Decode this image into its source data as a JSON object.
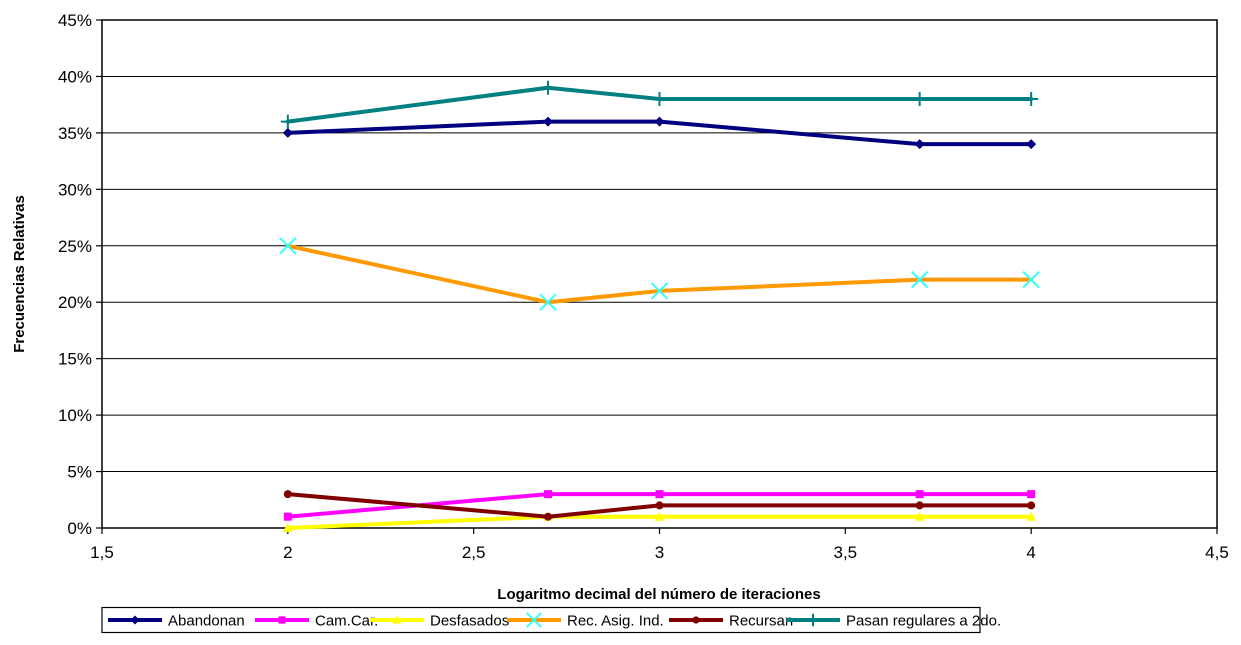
{
  "chart_data": {
    "type": "line",
    "title": "",
    "xlabel": "Logaritmo decimal del número de iteraciones",
    "ylabel": "Frecuencias Relativas",
    "xlim": [
      1.5,
      4.5
    ],
    "ylim": [
      0,
      0.45
    ],
    "x_ticks": [
      1.5,
      2,
      2.5,
      3,
      3.5,
      4,
      4.5
    ],
    "x_tick_labels": [
      "1,5",
      "2",
      "2,5",
      "3",
      "3,5",
      "4",
      "4,5"
    ],
    "y_ticks": [
      0,
      0.05,
      0.1,
      0.15,
      0.2,
      0.25,
      0.3,
      0.35,
      0.4,
      0.45
    ],
    "y_tick_labels": [
      "0%",
      "5%",
      "10%",
      "15%",
      "20%",
      "25%",
      "30%",
      "35%",
      "40%",
      "45%"
    ],
    "grid": "horizontal",
    "legend_position": "bottom",
    "x": [
      2,
      2.7,
      3,
      3.7,
      4
    ],
    "series": [
      {
        "name": "Abandonan",
        "values": [
          0.35,
          0.36,
          0.36,
          0.34,
          0.34
        ],
        "color": "#000080",
        "line_color": "#000080",
        "marker": "diamond"
      },
      {
        "name": "Cam.Car.",
        "values": [
          0.01,
          0.03,
          0.03,
          0.03,
          0.03
        ],
        "color": "#ff00ff",
        "line_color": "#ff00ff",
        "marker": "square"
      },
      {
        "name": "Desfasados",
        "values": [
          0.0,
          0.01,
          0.01,
          0.01,
          0.01
        ],
        "color": "#ffff00",
        "line_color": "#ffff00",
        "marker": "triangle"
      },
      {
        "name": "Rec. Asig. Ind.",
        "values": [
          0.25,
          0.2,
          0.21,
          0.22,
          0.22
        ],
        "color": "#33ffff",
        "line_color": "#ff9900",
        "marker": "x"
      },
      {
        "name": "Recursan",
        "values": [
          0.03,
          0.01,
          0.02,
          0.02,
          0.02
        ],
        "color": "#800000",
        "line_color": "#800000",
        "marker": "circle"
      },
      {
        "name": "Pasan regulares a 2do.",
        "values": [
          0.36,
          0.39,
          0.38,
          0.38,
          0.38
        ],
        "color": "#008080",
        "line_color": "#008080",
        "marker": "plus"
      }
    ]
  }
}
